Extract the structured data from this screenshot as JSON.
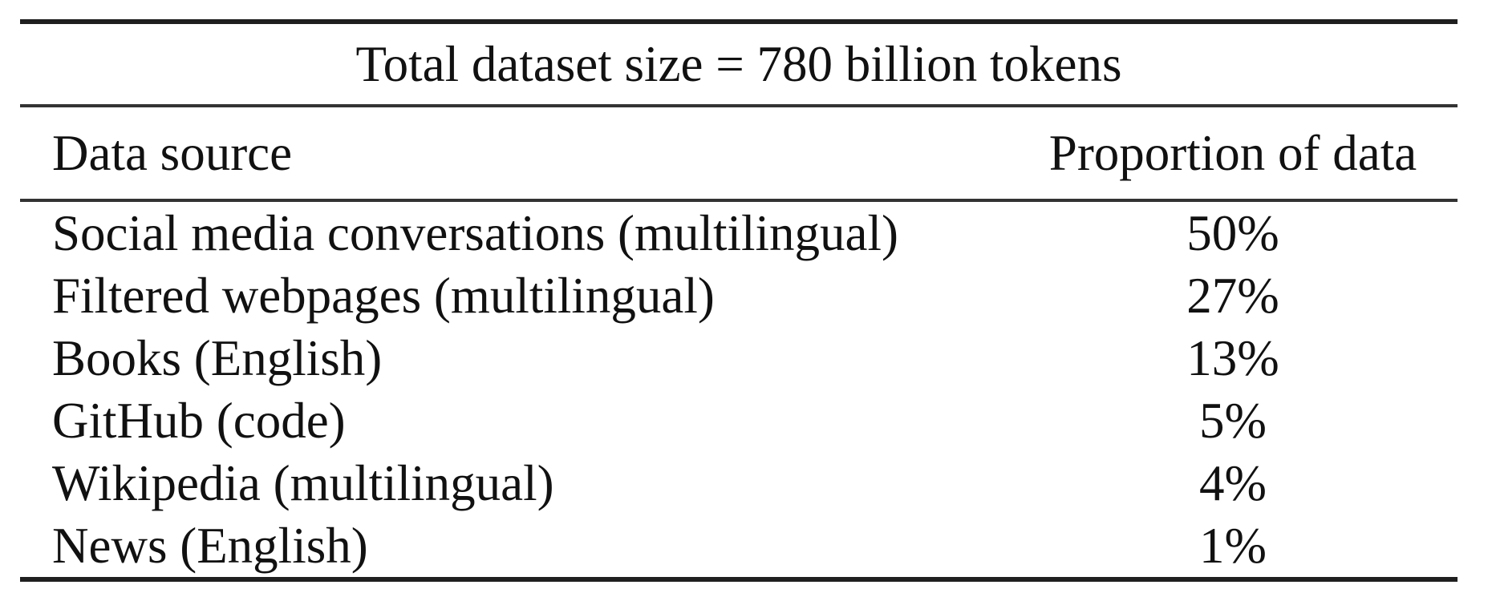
{
  "table": {
    "title": "Total dataset size = 780 billion tokens",
    "header": {
      "source": "Data source",
      "proportion": "Proportion of data"
    },
    "rows": [
      {
        "source": "Social media conversations (multilingual)",
        "proportion": "50%"
      },
      {
        "source": "Filtered webpages (multilingual)",
        "proportion": "27%"
      },
      {
        "source": "Books (English)",
        "proportion": "13%"
      },
      {
        "source": "GitHub (code)",
        "proportion": "5%"
      },
      {
        "source": "Wikipedia (multilingual)",
        "proportion": "4%"
      },
      {
        "source": "News (English)",
        "proportion": "1%"
      }
    ]
  },
  "chart_data": {
    "type": "table",
    "title": "Total dataset size = 780 billion tokens",
    "columns": [
      "Data source",
      "Proportion of data"
    ],
    "categories": [
      "Social media conversations (multilingual)",
      "Filtered webpages (multilingual)",
      "Books (English)",
      "GitHub (code)",
      "Wikipedia (multilingual)",
      "News (English)"
    ],
    "values_percent": [
      50,
      27,
      13,
      5,
      4,
      1
    ],
    "total_tokens_billion": 780
  },
  "colors": {
    "text": "#111111",
    "rule_thick": "#1f1f1f",
    "rule_thin": "#333333",
    "background": "#ffffff"
  }
}
